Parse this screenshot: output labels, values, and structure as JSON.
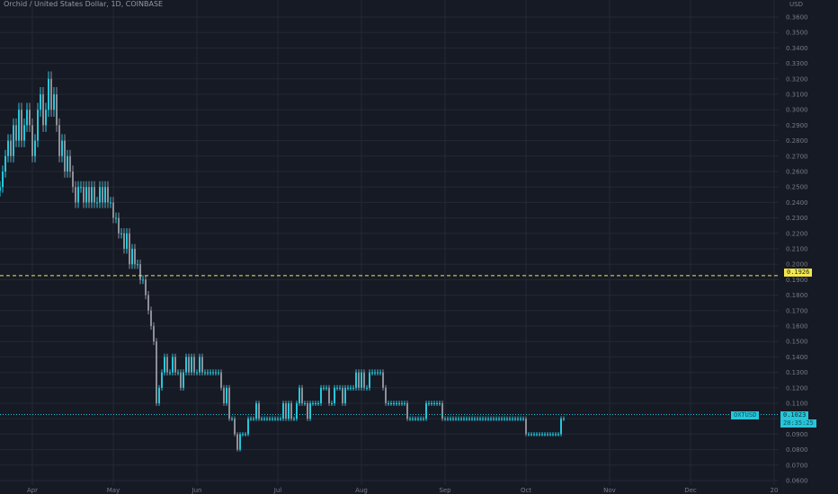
{
  "header": {
    "symbol_title": "Orchid / United States Dollar, 1D, COINBASE"
  },
  "colors": {
    "background": "#161a25",
    "grid": "#232834",
    "axis_text": "#787b86",
    "up": "#26c6da",
    "down": "#8d8f96",
    "hline": "#f5e64b",
    "last_price_line": "#26c6da"
  },
  "price_axis": {
    "unit_label": "USD"
  },
  "badges": {
    "hline_price": "0.1926",
    "last_price": "0.1023",
    "symbol_badge": "OXTUSD",
    "countdown": "20:35:25"
  },
  "chart_data": {
    "type": "candlestick",
    "title": "Orchid / United States Dollar, 1D, COINBASE",
    "xlabel": "",
    "ylabel": "USD",
    "ylim": [
      0.06,
      0.37
    ],
    "y_ticks": [
      "0.3600",
      "0.3500",
      "0.3400",
      "0.3300",
      "0.3200",
      "0.3100",
      "0.3000",
      "0.2900",
      "0.2800",
      "0.2700",
      "0.2600",
      "0.2500",
      "0.2400",
      "0.2300",
      "0.2200",
      "0.2100",
      "0.2000",
      "0.1900",
      "0.1800",
      "0.1700",
      "0.1600",
      "0.1500",
      "0.1400",
      "0.1300",
      "0.1200",
      "0.1100",
      "0.1000",
      "0.0900",
      "0.0800",
      "0.0700",
      "0.0600"
    ],
    "x_ticks": [
      {
        "label": "Apr",
        "date": "2021-04-01"
      },
      {
        "label": "May",
        "date": "2021-05-01"
      },
      {
        "label": "Jun",
        "date": "2021-06-01"
      },
      {
        "label": "Jul",
        "date": "2021-07-01"
      },
      {
        "label": "Aug",
        "date": "2021-08-01"
      },
      {
        "label": "Sep",
        "date": "2021-09-01"
      },
      {
        "label": "Oct",
        "date": "2021-10-01"
      },
      {
        "label": "Nov",
        "date": "2021-11-01"
      },
      {
        "label": "Dec",
        "date": "2021-12-01"
      },
      {
        "label": "20",
        "date": "2022-01-01"
      }
    ],
    "grid": true,
    "horizontal_line": 0.1926,
    "last_price": 0.1023,
    "series_start": "2021-03-20",
    "closes": [
      0.25,
      0.26,
      0.27,
      0.28,
      0.27,
      0.29,
      0.28,
      0.3,
      0.28,
      0.29,
      0.3,
      0.29,
      0.27,
      0.28,
      0.3,
      0.31,
      0.29,
      0.3,
      0.32,
      0.3,
      0.31,
      0.29,
      0.27,
      0.28,
      0.26,
      0.27,
      0.26,
      0.25,
      0.24,
      0.25,
      0.25,
      0.24,
      0.25,
      0.24,
      0.25,
      0.24,
      0.24,
      0.25,
      0.24,
      0.25,
      0.24,
      0.24,
      0.23,
      0.23,
      0.22,
      0.22,
      0.21,
      0.22,
      0.2,
      0.21,
      0.2,
      0.2,
      0.19,
      0.19,
      0.18,
      0.17,
      0.16,
      0.15,
      0.11,
      0.12,
      0.13,
      0.14,
      0.13,
      0.13,
      0.14,
      0.13,
      0.13,
      0.12,
      0.13,
      0.14,
      0.13,
      0.14,
      0.13,
      0.13,
      0.14,
      0.13,
      0.13,
      0.13,
      0.13,
      0.13,
      0.13,
      0.13,
      0.12,
      0.11,
      0.12,
      0.1,
      0.1,
      0.09,
      0.08,
      0.09,
      0.09,
      0.09,
      0.1,
      0.1,
      0.1,
      0.11,
      0.1,
      0.1,
      0.1,
      0.1,
      0.1,
      0.1,
      0.1,
      0.1,
      0.1,
      0.11,
      0.1,
      0.11,
      0.1,
      0.1,
      0.11,
      0.12,
      0.11,
      0.11,
      0.1,
      0.11,
      0.11,
      0.11,
      0.11,
      0.12,
      0.12,
      0.12,
      0.11,
      0.11,
      0.12,
      0.12,
      0.12,
      0.11,
      0.12,
      0.12,
      0.12,
      0.12,
      0.13,
      0.12,
      0.13,
      0.12,
      0.12,
      0.13,
      0.13,
      0.13,
      0.13,
      0.13,
      0.12,
      0.11,
      0.11,
      0.11,
      0.11,
      0.11,
      0.11,
      0.11,
      0.11,
      0.1,
      0.1,
      0.1,
      0.1,
      0.1,
      0.1,
      0.1,
      0.11,
      0.11,
      0.11,
      0.11,
      0.11,
      0.11,
      0.1,
      0.1,
      0.1,
      0.1,
      0.1,
      0.1,
      0.1,
      0.1,
      0.1,
      0.1,
      0.1,
      0.1,
      0.1,
      0.1,
      0.1,
      0.1,
      0.1,
      0.1,
      0.1,
      0.1,
      0.1,
      0.1,
      0.1,
      0.1,
      0.1,
      0.1,
      0.1,
      0.1,
      0.1,
      0.1,
      0.1,
      0.09,
      0.09,
      0.09,
      0.09,
      0.09,
      0.09,
      0.09,
      0.09,
      0.09,
      0.09,
      0.09,
      0.09,
      0.09,
      0.1,
      0.1
    ]
  }
}
